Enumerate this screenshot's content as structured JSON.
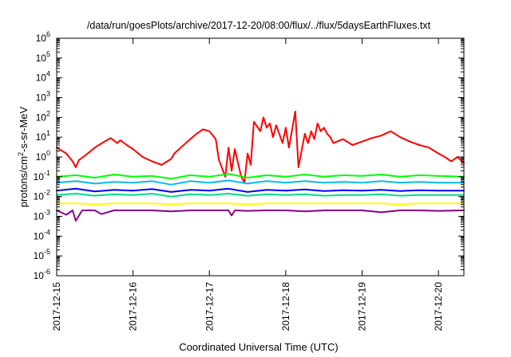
{
  "chart_data": {
    "type": "line",
    "title": "/data/run/goesPlots/archive/2017-12-20/08:00/flux/../flux/5daysEarthFluxes.txt",
    "xlabel": "Coordinated Universal Time (UTC)",
    "ylabel_parts": [
      "protons/cm",
      "2",
      "-s-sr-MeV"
    ],
    "y_scale": "log",
    "ylim": [
      1e-06,
      1000000.0
    ],
    "xlim": [
      "2017-12-15T00:00",
      "2017-12-20T08:00"
    ],
    "x_ticks": [
      "2017-12-15",
      "2017-12-16",
      "2017-12-17",
      "2017-12-18",
      "2017-12-19",
      "2017-12-20"
    ],
    "y_ticks": [
      {
        "base": "10",
        "exp": "-6"
      },
      {
        "base": "10",
        "exp": "-5"
      },
      {
        "base": "10",
        "exp": "-4"
      },
      {
        "base": "10",
        "exp": "-3"
      },
      {
        "base": "10",
        "exp": "-2"
      },
      {
        "base": "10",
        "exp": "-1"
      },
      {
        "base": "10",
        "exp": "0"
      },
      {
        "base": "10",
        "exp": "1"
      },
      {
        "base": "10",
        "exp": "2"
      },
      {
        "base": "10",
        "exp": "3"
      },
      {
        "base": "10",
        "exp": "4"
      },
      {
        "base": "10",
        "exp": "5"
      },
      {
        "base": "10",
        "exp": "6"
      }
    ],
    "grid": false,
    "series": [
      {
        "color": "#ff0000",
        "x": [
          "2017-12-15T00:00",
          "2017-12-15T03:00",
          "2017-12-15T05:00",
          "2017-12-15T06:00",
          "2017-12-15T07:00",
          "2017-12-15T09:00",
          "2017-12-15T12:00",
          "2017-12-15T15:00",
          "2017-12-15T17:00",
          "2017-12-15T19:00",
          "2017-12-15T20:00",
          "2017-12-15T22:00",
          "2017-12-16T00:00",
          "2017-12-16T03:00",
          "2017-12-16T06:00",
          "2017-12-16T09:00",
          "2017-12-16T12:00",
          "2017-12-16T13:00",
          "2017-12-16T15:00",
          "2017-12-16T18:00",
          "2017-12-16T20:00",
          "2017-12-16T22:00",
          "2017-12-17T00:00",
          "2017-12-17T02:00",
          "2017-12-17T03:00",
          "2017-12-17T05:00",
          "2017-12-17T06:00",
          "2017-12-17T07:00",
          "2017-12-17T08:00",
          "2017-12-17T10:00",
          "2017-12-17T11:00",
          "2017-12-17T12:00",
          "2017-12-17T13:00",
          "2017-12-17T14:00",
          "2017-12-17T16:00",
          "2017-12-17T17:00",
          "2017-12-17T18:00",
          "2017-12-17T19:00",
          "2017-12-17T20:00",
          "2017-12-17T21:00",
          "2017-12-17T23:00",
          "2017-12-18T00:00",
          "2017-12-18T01:00",
          "2017-12-18T03:00",
          "2017-12-18T04:00",
          "2017-12-18T06:00",
          "2017-12-18T07:00",
          "2017-12-18T08:00",
          "2017-12-18T09:00",
          "2017-12-18T10:00",
          "2017-12-18T11:00",
          "2017-12-18T12:00",
          "2017-12-18T13:00",
          "2017-12-18T14:00",
          "2017-12-18T15:00",
          "2017-12-18T18:00",
          "2017-12-18T21:00",
          "2017-12-19T00:00",
          "2017-12-19T03:00",
          "2017-12-19T06:00",
          "2017-12-19T09:00",
          "2017-12-19T12:00",
          "2017-12-19T15:00",
          "2017-12-19T18:00",
          "2017-12-19T21:00",
          "2017-12-20T00:00",
          "2017-12-20T02:00",
          "2017-12-20T04:00",
          "2017-12-20T06:00",
          "2017-12-20T08:00"
        ],
        "y": [
          3,
          1.5,
          0.6,
          0.3,
          0.7,
          1.2,
          3,
          6,
          9,
          5,
          7,
          4,
          2.5,
          1,
          0.6,
          0.4,
          0.8,
          1.5,
          3,
          8,
          15,
          25,
          20,
          8,
          0.7,
          0.1,
          3,
          0.2,
          2.5,
          0.1,
          0.05,
          1.5,
          0.4,
          60,
          20,
          100,
          30,
          50,
          10,
          40,
          5,
          30,
          3,
          200,
          0.3,
          15,
          5,
          20,
          8,
          50,
          20,
          30,
          15,
          10,
          5,
          8,
          4,
          6,
          9,
          12,
          20,
          10,
          6,
          4,
          3,
          1.5,
          1,
          0.6,
          1,
          0.5
        ]
      },
      {
        "color": "#00ff00",
        "x": [
          "2017-12-15T00:00",
          "2017-12-15T06:00",
          "2017-12-15T12:00",
          "2017-12-15T18:00",
          "2017-12-16T00:00",
          "2017-12-16T06:00",
          "2017-12-16T12:00",
          "2017-12-16T18:00",
          "2017-12-17T00:00",
          "2017-12-17T06:00",
          "2017-12-17T12:00",
          "2017-12-17T18:00",
          "2017-12-18T00:00",
          "2017-12-18T06:00",
          "2017-12-18T12:00",
          "2017-12-18T18:00",
          "2017-12-19T00:00",
          "2017-12-19T06:00",
          "2017-12-19T12:00",
          "2017-12-19T18:00",
          "2017-12-20T00:00",
          "2017-12-20T08:00"
        ],
        "y": [
          0.1,
          0.12,
          0.09,
          0.13,
          0.1,
          0.11,
          0.08,
          0.12,
          0.1,
          0.14,
          0.09,
          0.12,
          0.1,
          0.13,
          0.1,
          0.12,
          0.11,
          0.13,
          0.1,
          0.12,
          0.11,
          0.1
        ]
      },
      {
        "color": "#00bbff",
        "x": [
          "2017-12-15T00:00",
          "2017-12-15T06:00",
          "2017-12-15T12:00",
          "2017-12-15T18:00",
          "2017-12-16T00:00",
          "2017-12-16T06:00",
          "2017-12-16T12:00",
          "2017-12-16T18:00",
          "2017-12-17T00:00",
          "2017-12-17T06:00",
          "2017-12-17T12:00",
          "2017-12-17T18:00",
          "2017-12-18T00:00",
          "2017-12-18T06:00",
          "2017-12-18T12:00",
          "2017-12-18T18:00",
          "2017-12-19T00:00",
          "2017-12-19T06:00",
          "2017-12-19T12:00",
          "2017-12-19T18:00",
          "2017-12-20T00:00",
          "2017-12-20T08:00"
        ],
        "y": [
          0.05,
          0.06,
          0.045,
          0.055,
          0.05,
          0.06,
          0.04,
          0.06,
          0.05,
          0.065,
          0.045,
          0.06,
          0.05,
          0.06,
          0.05,
          0.055,
          0.05,
          0.06,
          0.05,
          0.055,
          0.05,
          0.05
        ]
      },
      {
        "color": "#0000ff",
        "x": [
          "2017-12-15T00:00",
          "2017-12-15T06:00",
          "2017-12-15T12:00",
          "2017-12-15T18:00",
          "2017-12-16T00:00",
          "2017-12-16T06:00",
          "2017-12-16T12:00",
          "2017-12-16T18:00",
          "2017-12-17T00:00",
          "2017-12-17T06:00",
          "2017-12-17T12:00",
          "2017-12-17T18:00",
          "2017-12-18T00:00",
          "2017-12-18T06:00",
          "2017-12-18T12:00",
          "2017-12-18T18:00",
          "2017-12-19T00:00",
          "2017-12-19T06:00",
          "2017-12-19T12:00",
          "2017-12-19T18:00",
          "2017-12-20T00:00",
          "2017-12-20T08:00"
        ],
        "y": [
          0.02,
          0.025,
          0.018,
          0.022,
          0.02,
          0.024,
          0.017,
          0.022,
          0.02,
          0.025,
          0.017,
          0.022,
          0.02,
          0.023,
          0.019,
          0.021,
          0.02,
          0.022,
          0.019,
          0.021,
          0.02,
          0.02
        ]
      },
      {
        "color": "#00dd88",
        "x": [
          "2017-12-15T00:00",
          "2017-12-15T06:00",
          "2017-12-15T12:00",
          "2017-12-15T18:00",
          "2017-12-16T00:00",
          "2017-12-16T06:00",
          "2017-12-16T12:00",
          "2017-12-16T18:00",
          "2017-12-17T00:00",
          "2017-12-17T06:00",
          "2017-12-17T12:00",
          "2017-12-17T18:00",
          "2017-12-18T00:00",
          "2017-12-18T06:00",
          "2017-12-18T12:00",
          "2017-12-18T18:00",
          "2017-12-19T00:00",
          "2017-12-19T06:00",
          "2017-12-19T12:00",
          "2017-12-19T18:00",
          "2017-12-20T00:00",
          "2017-12-20T08:00"
        ],
        "y": [
          0.012,
          0.014,
          0.011,
          0.013,
          0.012,
          0.014,
          0.01,
          0.013,
          0.012,
          0.014,
          0.011,
          0.013,
          0.012,
          0.013,
          0.011,
          0.012,
          0.012,
          0.013,
          0.011,
          0.012,
          0.012,
          0.012
        ]
      },
      {
        "color": "#ffff00",
        "x": [
          "2017-12-15T00:00",
          "2017-12-15T06:00",
          "2017-12-15T12:00",
          "2017-12-15T18:00",
          "2017-12-16T00:00",
          "2017-12-16T06:00",
          "2017-12-16T12:00",
          "2017-12-16T18:00",
          "2017-12-17T00:00",
          "2017-12-17T06:00",
          "2017-12-17T12:00",
          "2017-12-17T18:00",
          "2017-12-18T00:00",
          "2017-12-18T06:00",
          "2017-12-18T12:00",
          "2017-12-18T18:00",
          "2017-12-19T00:00",
          "2017-12-19T06:00",
          "2017-12-19T12:00",
          "2017-12-19T18:00",
          "2017-12-20T00:00",
          "2017-12-20T08:00"
        ],
        "y": [
          0.0045,
          0.0045,
          0.004,
          0.0045,
          0.0045,
          0.0045,
          0.004,
          0.0045,
          0.0045,
          0.0045,
          0.004,
          0.0045,
          0.0045,
          0.0045,
          0.0045,
          0.0045,
          0.0045,
          0.0045,
          0.004,
          0.0045,
          0.0045,
          0.0045
        ]
      },
      {
        "color": "#880088",
        "x": [
          "2017-12-15T00:00",
          "2017-12-15T03:00",
          "2017-12-15T05:00",
          "2017-12-15T06:00",
          "2017-12-15T08:00",
          "2017-12-15T12:00",
          "2017-12-15T14:00",
          "2017-12-15T18:00",
          "2017-12-16T00:00",
          "2017-12-16T06:00",
          "2017-12-16T12:00",
          "2017-12-16T18:00",
          "2017-12-17T00:00",
          "2017-12-17T06:00",
          "2017-12-17T07:00",
          "2017-12-17T08:00",
          "2017-12-17T12:00",
          "2017-12-17T18:00",
          "2017-12-18T00:00",
          "2017-12-18T06:00",
          "2017-12-18T12:00",
          "2017-12-18T18:00",
          "2017-12-19T00:00",
          "2017-12-19T06:00",
          "2017-12-19T12:00",
          "2017-12-19T18:00",
          "2017-12-20T00:00",
          "2017-12-20T08:00"
        ],
        "y": [
          0.002,
          0.0012,
          0.002,
          0.0006,
          0.002,
          0.002,
          0.0013,
          0.002,
          0.002,
          0.002,
          0.0018,
          0.002,
          0.002,
          0.002,
          0.0011,
          0.002,
          0.0019,
          0.002,
          0.002,
          0.0018,
          0.002,
          0.002,
          0.002,
          0.0016,
          0.002,
          0.002,
          0.0019,
          0.002
        ]
      }
    ]
  }
}
